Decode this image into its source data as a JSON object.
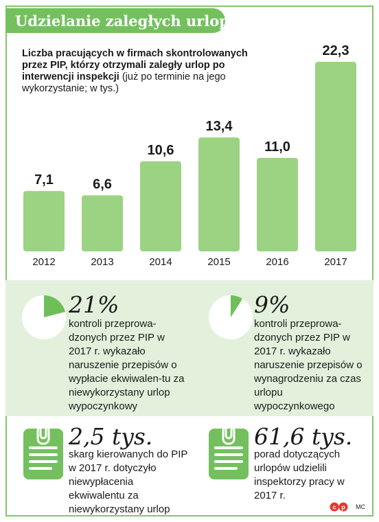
{
  "title": "Udzielanie zaległych urlopów",
  "subtitle": {
    "bold": "Liczba pracujących w firmach skontrolowanych przez PIP, którzy otrzymali zaległy urlop po interwencji inspekcji",
    "normal": " (już po terminie na jego wykorzystanie; w tys.)"
  },
  "chart_data": {
    "type": "bar",
    "categories": [
      "2012",
      "2013",
      "2014",
      "2015",
      "2016",
      "2017"
    ],
    "values": [
      7.1,
      6.6,
      10.6,
      13.4,
      11.0,
      22.3
    ],
    "value_labels": [
      "7,1",
      "6,6",
      "10,6",
      "13,4",
      "11,0",
      "22,3"
    ],
    "ylabel": "",
    "xlabel": "",
    "ylim": [
      0,
      22.3
    ],
    "grid": false,
    "color": "#9bd383"
  },
  "stats": [
    {
      "big": "21%",
      "text": "kontroli przeprowa-dzonych przez PIP w 2017 r. wykazało naruszenie przepisów o wypłacie ekwiwalen-tu za niewykorzystany urlop wypoczynkowy",
      "pie_fraction": 0.21
    },
    {
      "big": "9%",
      "text": "kontroli przeprowa-dzonych przez PIP w 2017 r. wykazało naruszenie przepisów o wynagrodzeniu za czas urlopu wypoczynkowego",
      "pie_fraction": 0.09
    },
    {
      "big": "2,5 tys.",
      "text": "skarg kierowanych do PIP w 2017 r. dotyczyło niewypłacenia ekwiwalentu za niewykorzystany urlop",
      "icon": "clipboard-icon"
    },
    {
      "big": "61,6 tys.",
      "text": "porad dotyczących urlopów udzielili inspektorzy pracy w 2017 r.",
      "icon": "clipboard-icon"
    }
  ],
  "credits": {
    "logo": "cp-logo",
    "author": "MC"
  },
  "colors": {
    "accent": "#74c05f",
    "bar": "#9bd383",
    "band": "#e3f1dc",
    "pie_slice": "#6fbf59"
  }
}
